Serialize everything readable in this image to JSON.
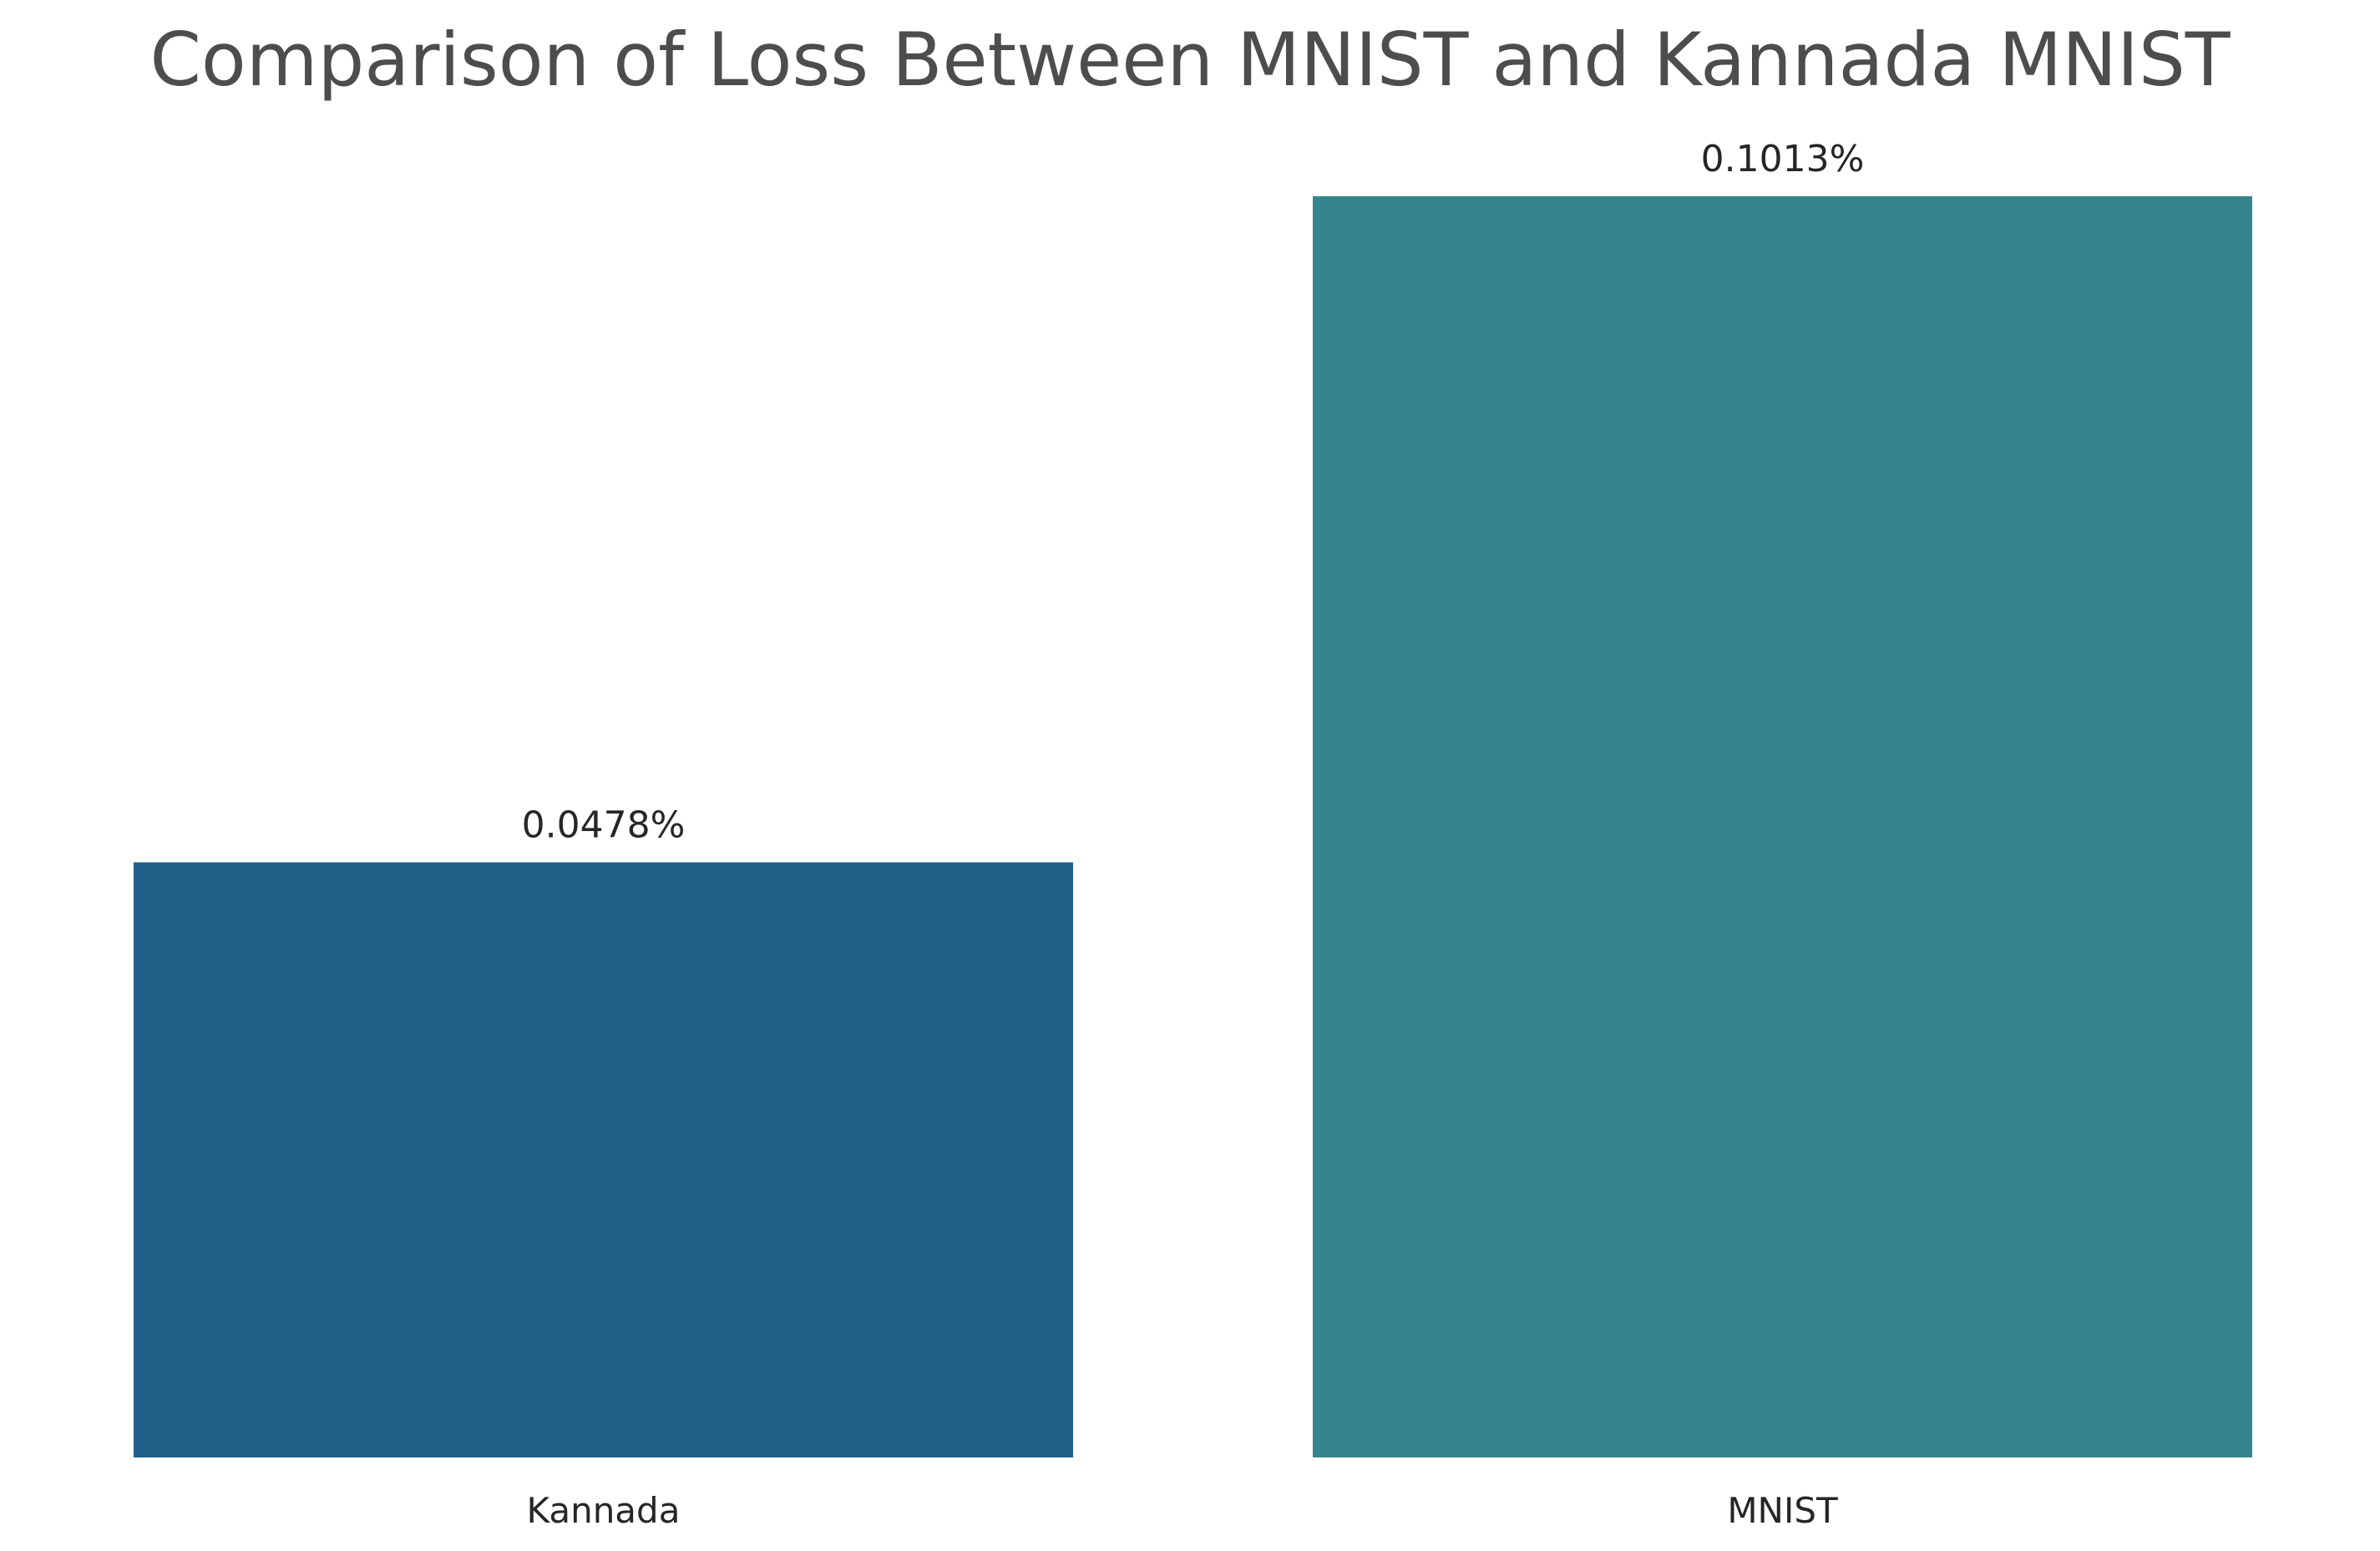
{
  "chart_data": {
    "type": "bar",
    "title": "Comparison of Loss Between MNIST and Kannada MNIST",
    "xlabel": "",
    "ylabel": "",
    "categories": [
      "Kannada",
      "MNIST"
    ],
    "values": [
      0.0478,
      0.1013
    ],
    "data_labels": [
      "0.0478%",
      "0.1013%"
    ],
    "colors": [
      "#1f5f88",
      "#37848c"
    ],
    "ylim": [
      0,
      0.1013
    ],
    "grid": false,
    "legend": "none"
  }
}
